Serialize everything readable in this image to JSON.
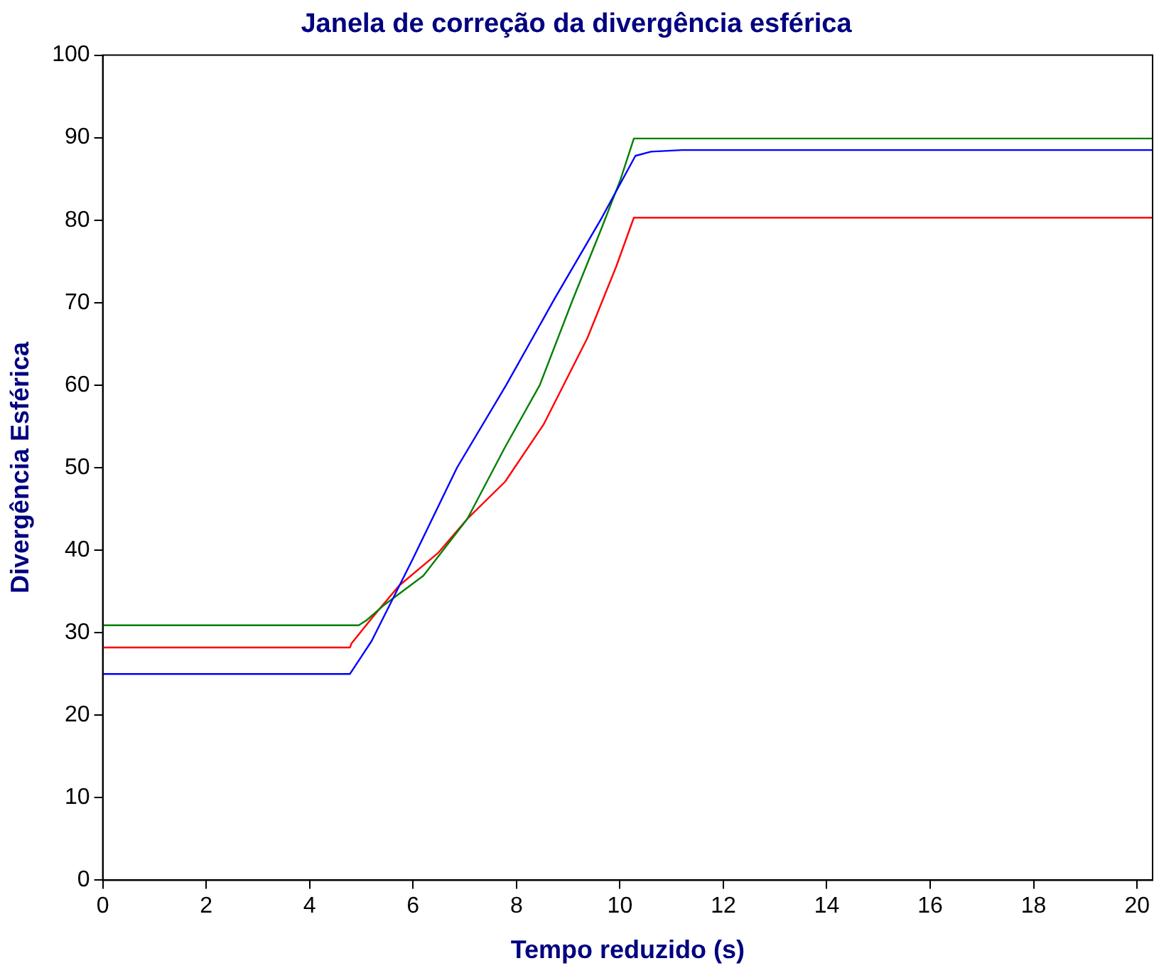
{
  "chart_data": {
    "type": "line",
    "title": "Janela de correção da divergência esférica",
    "xlabel": "Tempo reduzido (s)",
    "ylabel": "Divergência Esférica",
    "xlim": [
      0,
      20.3
    ],
    "xticks": [
      0,
      2,
      4,
      6,
      8,
      10,
      12,
      14,
      16,
      18,
      20
    ],
    "ylim": [
      0,
      100
    ],
    "yticks": [
      0,
      10,
      20,
      30,
      40,
      50,
      60,
      70,
      80,
      90,
      100
    ],
    "grid": false,
    "legend": false,
    "marker": "none",
    "line_style": "solid",
    "series": [
      {
        "color": "#0000ff",
        "x": [
          0,
          4.78,
          5.2,
          6.0,
          6.85,
          7.8,
          8.73,
          9.65,
          10.3,
          10.6,
          11.2,
          20.3
        ],
        "values": [
          25,
          25,
          29,
          39,
          50,
          60,
          70.4,
          80.3,
          87.8,
          88.3,
          88.5,
          88.5
        ]
      },
      {
        "color": "#008000",
        "x": [
          0,
          4.95,
          5.1,
          5.45,
          6.2,
          7.05,
          7.78,
          8.45,
          9.09,
          9.65,
          10.01,
          10.27,
          20.3
        ],
        "values": [
          30.9,
          30.9,
          31.5,
          33.4,
          36.9,
          43.8,
          52.5,
          60,
          70.4,
          79.1,
          84.9,
          89.9,
          89.9
        ]
      },
      {
        "color": "#ff0000",
        "x": [
          0,
          4.78,
          4.81,
          5.26,
          5.73,
          6.49,
          7.05,
          7.78,
          8.53,
          9.37,
          9.93,
          10.27,
          20.3
        ],
        "values": [
          28.2,
          28.2,
          28.7,
          32.2,
          35.7,
          39.7,
          43.8,
          48.3,
          55.3,
          65.7,
          74.4,
          80.3,
          80.3
        ]
      }
    ]
  }
}
